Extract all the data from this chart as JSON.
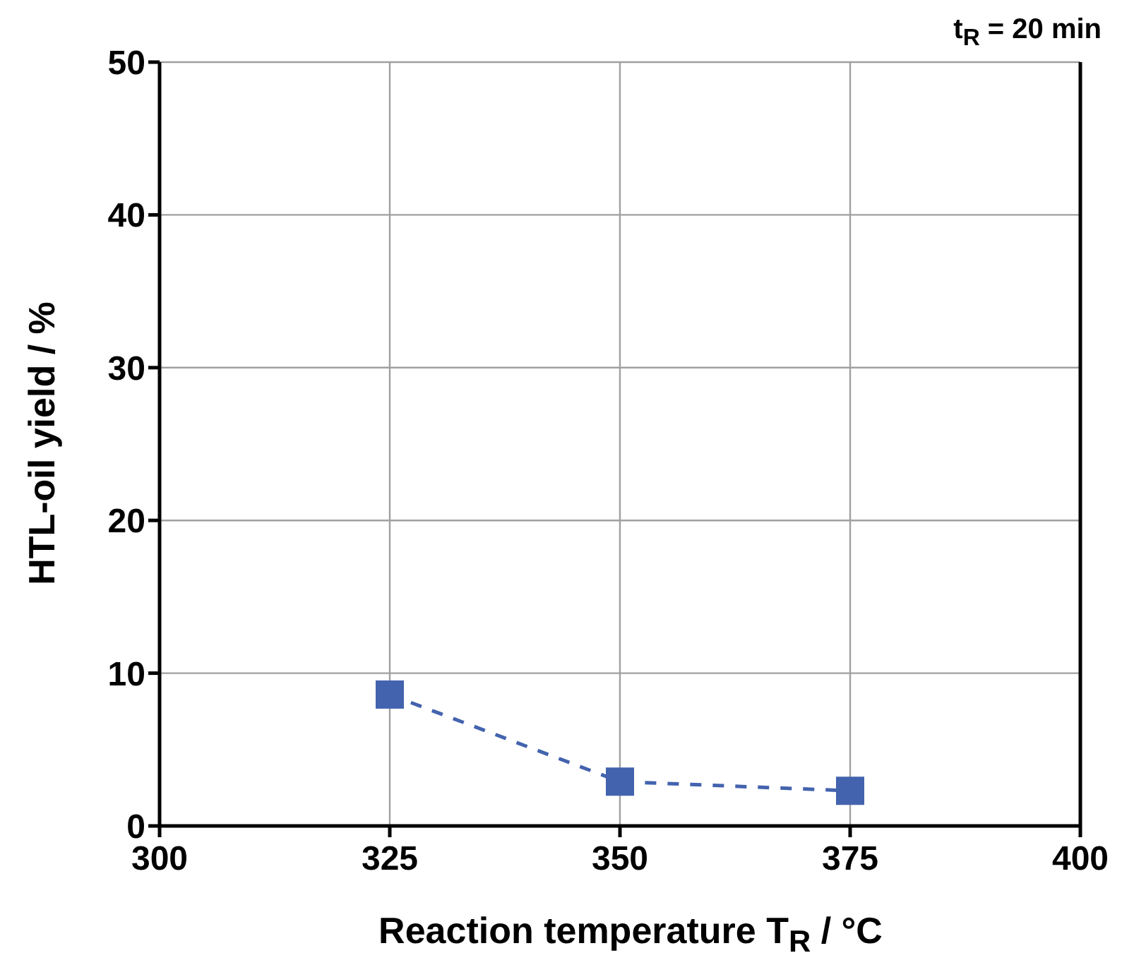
{
  "chart_data": {
    "type": "line",
    "xlabel": "Reaction temperature T$_{R}$ / °C",
    "ylabel": "HTL-oil yield / %",
    "annotations": [
      "t$_{R}$ = 20 min"
    ],
    "x": [
      325,
      350,
      375
    ],
    "series": [
      {
        "color": "#4363ae",
        "values": [
          8.6,
          2.9,
          2.3
        ]
      }
    ],
    "xlim": [
      300,
      400
    ],
    "xticks": [
      300,
      325,
      350,
      375,
      400
    ],
    "ylim": [
      0,
      50
    ],
    "yticks": [
      0,
      10,
      20,
      30,
      40,
      50
    ],
    "grid": true,
    "legend": false,
    "marker": "square",
    "line_style": "dashed"
  }
}
